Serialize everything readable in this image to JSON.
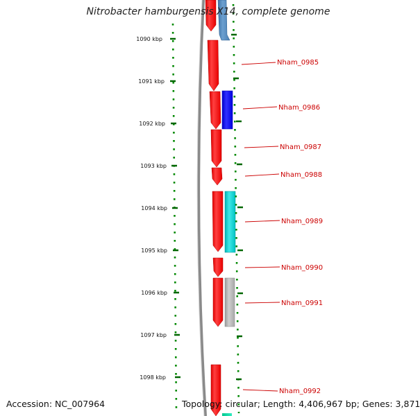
{
  "title": "Nitrobacter hamburgensis X14, complete genome",
  "accession": "Accession: NC_007964",
  "stats": "Topology: circular; Length: 4,406,967 bp; Genes: 3,871",
  "colors": {
    "background": "#ffffff",
    "backbone": "#808080",
    "forward_cds": "#ff0000",
    "tick": "#007700",
    "label": "#cc0000",
    "connector": "#cc0000"
  },
  "axis": {
    "unit": "kbp",
    "ticks": [
      "1090 kbp",
      "1091 kbp",
      "1092 kbp",
      "1093 kbp",
      "1094 kbp",
      "1095 kbp",
      "1096 kbp",
      "1097 kbp",
      "1098 kbp"
    ]
  },
  "gene_labels": [
    "Nham_0985",
    "Nham_0986",
    "Nham_0987",
    "Nham_0988",
    "Nham_0989",
    "Nham_0990",
    "Nham_0991",
    "Nham_0992"
  ],
  "feature_tracks": [
    {
      "track": "forward",
      "color": "#ff0000"
    },
    {
      "track": "cog",
      "colors": [
        "#4682b4",
        "#0000ee",
        "#00cccc",
        "#aaaaaa",
        "#00ddaa"
      ]
    }
  ]
}
